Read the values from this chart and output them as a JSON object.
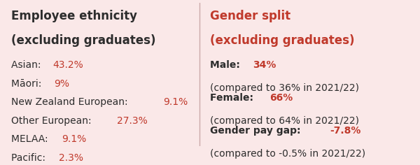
{
  "bg_color": "#fae8e8",
  "black_color": "#2d2d2d",
  "red_color": "#c0392b",
  "left_title_line1": "Employee ethnicity",
  "left_title_line2": "(excluding graduates)",
  "right_title_line1": "Gender split",
  "right_title_line2": "(excluding graduates)",
  "left_items": [
    {
      "label": "Asian: ",
      "value": "43.2%"
    },
    {
      "label": "Māori: ",
      "value": "9%"
    },
    {
      "label": "New Zealand European: ",
      "value": "9.1%"
    },
    {
      "label": "Other European: ",
      "value": "27.3%"
    },
    {
      "label": "MELAA: ",
      "value": "9.1%"
    },
    {
      "label": "Pacific: ",
      "value": "2.3%"
    }
  ],
  "right_items": [
    {
      "bold_label": "Male: ",
      "bold_value": "34%",
      "sub": "(compared to 36% in 2021/22)"
    },
    {
      "bold_label": "Female: ",
      "bold_value": "66%",
      "sub": "(compared to 64% in 2021/22)"
    },
    {
      "bold_label": "Gender pay gap: ",
      "bold_value": "-7.8%",
      "sub": "(compared to -0.5% in 2021/22)"
    }
  ],
  "font_size_title": 12,
  "font_size_body": 10,
  "divider_color": "#ccaaaa"
}
